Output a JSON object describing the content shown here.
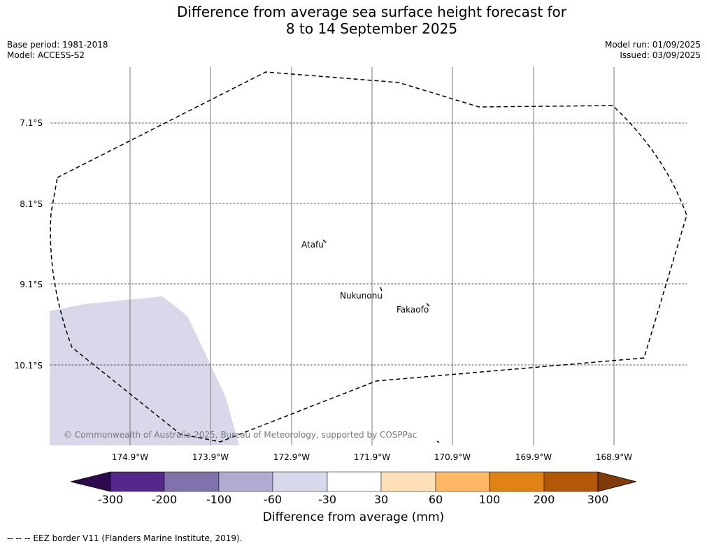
{
  "title": "Difference from average sea surface height forecast for\n8 to 14 September 2025",
  "base_period": "Base period: 1981-2018",
  "model": "Model: ACCESS-S2",
  "model_run": "Model run: 01/09/2025",
  "issued": "Issued: 03/09/2025",
  "map": {
    "lat_labels": [
      "7.1°S",
      "8.1°S",
      "9.1°S",
      "10.1°S"
    ],
    "lon_labels": [
      "174.9°W",
      "173.9°W",
      "172.9°W",
      "171.9°W",
      "170.9°W",
      "169.9°W",
      "168.9°W"
    ],
    "places": [
      "Atafu",
      "Nukunonu",
      "Fakaofo"
    ],
    "copyright": "© Commonwealth of Australia 2025, Bureau of Meteorology, supported by COSPPac",
    "anomaly_fill_color": "#d8d8ea",
    "eez_line_color": "#000000"
  },
  "colorbar": {
    "ticks": [
      "-300",
      "-200",
      "-100",
      "-60",
      "-30",
      "30",
      "60",
      "100",
      "200",
      "300"
    ],
    "colors": {
      "below": "#2d0a4e",
      "bins": [
        "#542788",
        "#8073ac",
        "#b2abd2",
        "#d8daeb",
        "#ffffff",
        "#fee0b6",
        "#fdb863",
        "#e08214",
        "#b35806"
      ],
      "above": "#7f3b08"
    },
    "label": "Difference from average (mm)"
  },
  "footer": "--  --  -- EEZ border V11 (Flanders Marine Institute, 2019)."
}
